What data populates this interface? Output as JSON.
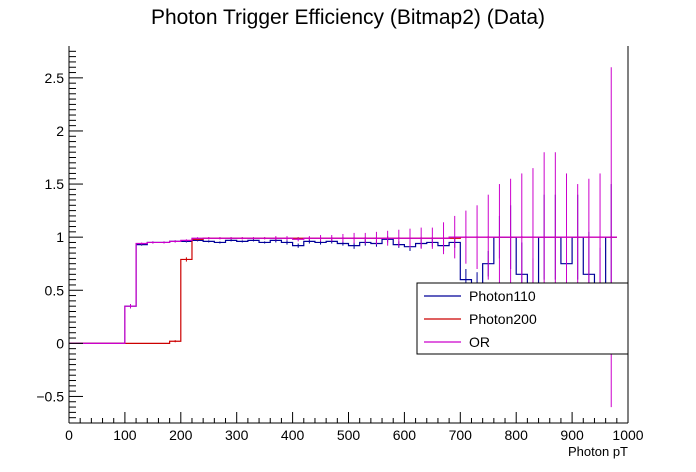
{
  "chart_data": {
    "type": "line",
    "title": "Photon Trigger Efficiency (Bitmap2) (Data)",
    "xlabel": "Photon pT",
    "ylabel": "",
    "xlim": [
      0,
      1000
    ],
    "ylim": [
      -0.75,
      2.8
    ],
    "xticks": [
      0,
      100,
      200,
      300,
      400,
      500,
      600,
      700,
      800,
      900,
      1000
    ],
    "yticks": [
      -0.5,
      0,
      0.5,
      1,
      1.5,
      2,
      2.5
    ],
    "xtick_labels": [
      "0",
      "100",
      "200",
      "300",
      "400",
      "500",
      "600",
      "700",
      "800",
      "900",
      "1000"
    ],
    "ytick_labels": [
      "−0.5",
      "0",
      "0.5",
      "1",
      "1.5",
      "2",
      "2.5"
    ],
    "grid": false,
    "legend_position": "bottom-right",
    "bin_edges": [
      0,
      100,
      120,
      140,
      160,
      180,
      200,
      220,
      240,
      260,
      280,
      300,
      320,
      340,
      360,
      380,
      400,
      420,
      440,
      460,
      480,
      500,
      520,
      540,
      560,
      580,
      600,
      620,
      640,
      660,
      680,
      700,
      720,
      740,
      760,
      780,
      800,
      820,
      840,
      860,
      880,
      900,
      920,
      940,
      960,
      980
    ],
    "series": [
      {
        "name": "Photon110",
        "color": "#000099",
        "values": [
          0,
          0.35,
          0.93,
          0.95,
          0.95,
          0.96,
          0.96,
          0.97,
          0.96,
          0.95,
          0.97,
          0.96,
          0.97,
          0.95,
          0.97,
          0.95,
          0.92,
          0.96,
          0.95,
          0.96,
          0.94,
          0.92,
          0.95,
          0.94,
          0.98,
          0.93,
          0.91,
          0.94,
          0.95,
          0.92,
          0.95,
          0.6,
          0.55,
          0.75,
          1.0,
          1.0,
          0.65,
          0.5,
          1.0,
          1.0,
          0.75,
          1.0,
          0.65,
          0.5,
          1.0
        ],
        "errors": [
          0,
          0.02,
          0.01,
          0.01,
          0.01,
          0.01,
          0.01,
          0.01,
          0.01,
          0.01,
          0.01,
          0.01,
          0.01,
          0.01,
          0.02,
          0.02,
          0.02,
          0.02,
          0.02,
          0.02,
          0.02,
          0.03,
          0.03,
          0.03,
          0.03,
          0.03,
          0.04,
          0.04,
          0.04,
          0.05,
          0.05,
          0.1,
          0.12,
          0.12,
          0.2,
          0.3,
          0.3,
          0.3,
          0.4,
          0.4,
          0.4,
          0.4,
          0.4,
          0.4,
          0.5
        ]
      },
      {
        "name": "Photon200",
        "color": "#cc0000",
        "values": [
          0,
          0,
          0,
          0,
          0,
          0.02,
          0.79,
          0.98,
          0.99,
          0.99,
          0.99,
          0.99,
          0.99,
          0.99,
          0.99,
          0.99,
          0.99,
          0.99,
          0.99,
          0.99,
          0.99,
          0.99,
          0.99,
          0.99,
          0.99,
          0.99,
          0.99,
          0.99,
          0.99,
          0.99,
          0.99,
          1.0,
          1.0,
          1.0,
          1.0,
          1.0,
          1.0,
          1.0,
          1.0,
          1.0,
          1.0,
          1.0,
          1.0,
          1.0,
          1.0
        ],
        "errors": [
          0,
          0,
          0,
          0,
          0,
          0.01,
          0.02,
          0.01,
          0.01,
          0.01,
          0.01,
          0.01,
          0.01,
          0.01,
          0.01,
          0.01,
          0.01,
          0.01,
          0.01,
          0.01,
          0.01,
          0.01,
          0.01,
          0.01,
          0.01,
          0.01,
          0.01,
          0.01,
          0.01,
          0.01,
          0.01,
          0.01,
          0.01,
          0.01,
          0.01,
          0.01,
          0.01,
          0.01,
          0.01,
          0.01,
          0.01,
          0.01,
          0.01,
          0.01,
          0.01
        ]
      },
      {
        "name": "OR",
        "color": "#cc00cc",
        "values": [
          0,
          0.35,
          0.94,
          0.95,
          0.95,
          0.96,
          0.97,
          0.99,
          0.99,
          0.99,
          0.99,
          0.99,
          0.99,
          0.99,
          0.99,
          0.99,
          0.98,
          0.99,
          0.99,
          0.99,
          0.99,
          0.99,
          0.99,
          0.99,
          0.99,
          0.99,
          0.99,
          0.99,
          0.99,
          0.99,
          1.0,
          1.0,
          1.0,
          1.0,
          1.0,
          1.0,
          1.0,
          1.0,
          1.0,
          1.0,
          1.0,
          1.0,
          1.0,
          1.0,
          1.0
        ],
        "errors": [
          0,
          0.02,
          0.01,
          0.01,
          0.01,
          0.01,
          0.01,
          0.01,
          0.01,
          0.01,
          0.01,
          0.01,
          0.01,
          0.01,
          0.02,
          0.02,
          0.02,
          0.02,
          0.03,
          0.03,
          0.04,
          0.05,
          0.05,
          0.06,
          0.07,
          0.08,
          0.09,
          0.1,
          0.1,
          0.15,
          0.2,
          0.25,
          0.3,
          0.4,
          0.5,
          0.55,
          0.6,
          0.65,
          0.8,
          0.8,
          0.6,
          0.5,
          0.55,
          0.6,
          1.6
        ]
      }
    ]
  }
}
